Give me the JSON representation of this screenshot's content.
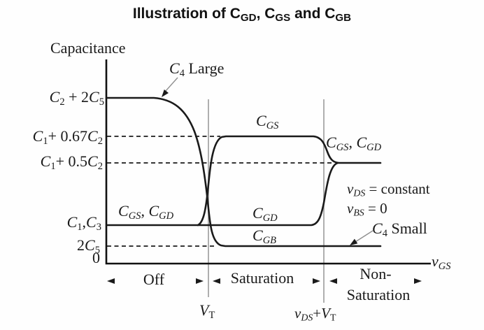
{
  "colors": {
    "ink": "#1a1a1a",
    "guide_gray": "#9b9b9b",
    "background": "#fefefe"
  },
  "labels": {
    "title": [
      {
        "t": "Illustration of C"
      },
      {
        "t": "GD",
        "sub": true
      },
      {
        "t": ", C"
      },
      {
        "t": "GS",
        "sub": true
      },
      {
        "t": " and C"
      },
      {
        "t": "GB",
        "sub": true
      }
    ],
    "capacitance": "Capacitance",
    "c2_2c5": [
      {
        "t": "C",
        "i": true
      },
      {
        "t": "2",
        "sub": true
      },
      {
        "t": " + 2"
      },
      {
        "t": "C",
        "i": true
      },
      {
        "t": "5",
        "sub": true
      }
    ],
    "c1_067c2": [
      {
        "t": "C",
        "i": true
      },
      {
        "t": "1",
        "sub": true
      },
      {
        "t": "+ 0.67"
      },
      {
        "t": "C",
        "i": true
      },
      {
        "t": "2",
        "sub": true
      }
    ],
    "c1_05c2": [
      {
        "t": "C",
        "i": true
      },
      {
        "t": "1",
        "sub": true
      },
      {
        "t": "+ 0.5"
      },
      {
        "t": "C",
        "i": true
      },
      {
        "t": "2",
        "sub": true
      }
    ],
    "c1_c3": [
      {
        "t": "C",
        "i": true
      },
      {
        "t": "1",
        "sub": true
      },
      {
        "t": ","
      },
      {
        "t": "C",
        "i": true
      },
      {
        "t": "3",
        "sub": true
      }
    ],
    "two_c5": [
      {
        "t": "2"
      },
      {
        "t": "C",
        "i": true
      },
      {
        "t": "5",
        "sub": true
      }
    ],
    "zero": "0",
    "cgs_cgd_off": [
      {
        "t": "C",
        "i": true
      },
      {
        "t": "GS",
        "sub": true,
        "i": true
      },
      {
        "t": ", "
      },
      {
        "t": "C",
        "i": true
      },
      {
        "t": "GD",
        "sub": true,
        "i": true
      }
    ],
    "c4_large": [
      {
        "t": "C",
        "i": true
      },
      {
        "t": "4",
        "sub": true
      },
      {
        "t": " Large"
      }
    ],
    "cgs": [
      {
        "t": "C",
        "i": true
      },
      {
        "t": "GS",
        "sub": true,
        "i": true
      }
    ],
    "cgd": [
      {
        "t": "C",
        "i": true
      },
      {
        "t": "GD",
        "sub": true,
        "i": true
      }
    ],
    "cgb": [
      {
        "t": "C",
        "i": true
      },
      {
        "t": "GB",
        "sub": true,
        "i": true
      }
    ],
    "cgs_cgd_right": [
      {
        "t": "C",
        "i": true
      },
      {
        "t": "GS",
        "sub": true,
        "i": true
      },
      {
        "t": ", "
      },
      {
        "t": "C",
        "i": true
      },
      {
        "t": "GD",
        "sub": true,
        "i": true
      }
    ],
    "vds_constant": [
      {
        "t": "v",
        "i": true
      },
      {
        "t": "DS",
        "sub": true,
        "i": true
      },
      {
        "t": " = constant"
      }
    ],
    "vbs_zero": [
      {
        "t": "v",
        "i": true
      },
      {
        "t": "BS",
        "sub": true,
        "i": true
      },
      {
        "t": " = 0"
      }
    ],
    "c4_small": [
      {
        "t": "C",
        "i": true
      },
      {
        "t": "4",
        "sub": true
      },
      {
        "t": " Small"
      }
    ],
    "off": "Off",
    "saturation": "Saturation",
    "non_sat_line1": "Non-",
    "non_sat_line2": "Saturation",
    "vt": [
      {
        "t": "V",
        "i": true
      },
      {
        "t": "T",
        "sub": true
      }
    ],
    "vds_vt": [
      {
        "t": "v",
        "i": true
      },
      {
        "t": "DS",
        "sub": true,
        "i": true
      },
      {
        "t": "+"
      },
      {
        "t": "V",
        "i": true
      },
      {
        "t": "T",
        "sub": true
      }
    ],
    "vgs": [
      {
        "t": "v",
        "i": true
      },
      {
        "t": "GS",
        "sub": true,
        "i": true
      }
    ]
  },
  "chart_data": {
    "type": "line",
    "title": "Illustration of C_GD, C_GS and C_GB",
    "xlabel": "v_GS",
    "ylabel": "Capacitance",
    "x_markers": [
      "V_T",
      "v_DS+V_T"
    ],
    "regions": [
      "Off",
      "Saturation",
      "Non-Saturation"
    ],
    "y_levels": [
      "0",
      "2C5",
      "C1,C3",
      "C1+0.5C2",
      "C1+0.67C2",
      "C2+2C5"
    ],
    "series": [
      {
        "name": "C_GB",
        "values_by_region": {
          "Off": "C2+2C5",
          "Saturation": "2C5",
          "Non-Saturation": "2C5"
        },
        "transition": "falls steeply at V_T"
      },
      {
        "name": "C_GS",
        "values_by_region": {
          "Off": "C1,C3",
          "Saturation": "C1+0.67C2",
          "Non-Saturation": "C1+0.5C2"
        },
        "transition": "rises at V_T, settles at v_DS+V_T"
      },
      {
        "name": "C_GD",
        "values_by_region": {
          "Off": "C1,C3",
          "Saturation": "C1,C3",
          "Non-Saturation": "C1+0.5C2"
        },
        "transition": "rises at v_DS+V_T"
      }
    ],
    "conditions": [
      "v_DS = constant",
      "v_BS = 0"
    ],
    "annotations": [
      "C4 Large (points to high C_GB plateau)",
      "C4 Small (points to low C_GB plateau)"
    ],
    "grid": false,
    "legend_position": "inline-curve-labels"
  }
}
